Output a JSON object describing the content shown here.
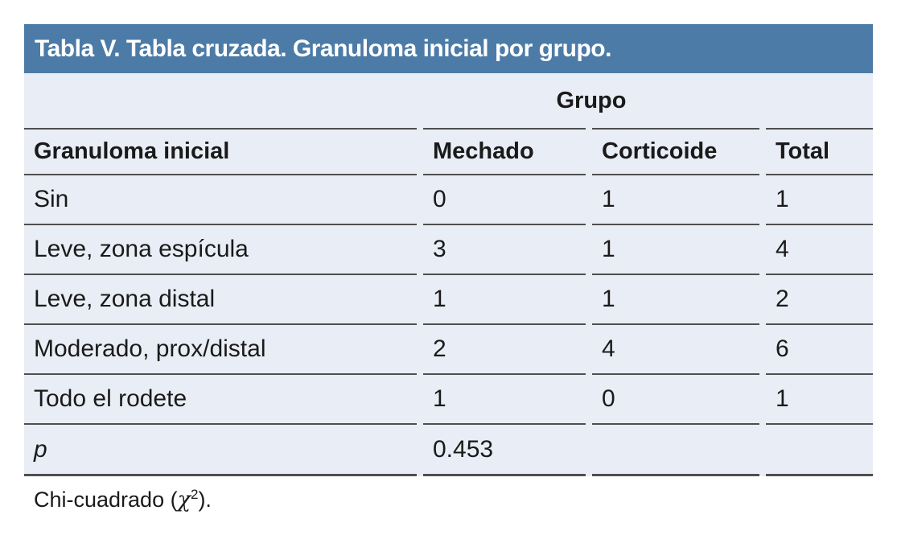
{
  "title": "Tabla V. Tabla cruzada. Granuloma inicial por grupo.",
  "table": {
    "group_header": "Grupo",
    "columns": [
      "Granuloma inicial",
      "Mechado",
      "Corticoide",
      "Total"
    ],
    "rows": [
      {
        "label": "Sin",
        "values": [
          "0",
          "1",
          "1"
        ]
      },
      {
        "label": "Leve, zona espícula",
        "values": [
          "3",
          "1",
          "4"
        ]
      },
      {
        "label": "Leve, zona distal",
        "values": [
          "1",
          "1",
          "2"
        ]
      },
      {
        "label": "Moderado, prox/distal",
        "values": [
          "2",
          "4",
          "6"
        ]
      },
      {
        "label": "Todo el rodete",
        "values": [
          "1",
          "0",
          "1"
        ]
      }
    ],
    "p_row": {
      "label": "p",
      "value": "0.453"
    }
  },
  "footnote": {
    "prefix": "Chi-cuadrado (",
    "chi": "χ",
    "sup": "2",
    "suffix": ")."
  },
  "chart_data": {
    "type": "table",
    "title": "Tabla V. Tabla cruzada. Granuloma inicial por grupo.",
    "group_label": "Grupo",
    "categories": [
      "Sin",
      "Leve, zona espícula",
      "Leve, zona distal",
      "Moderado, prox/distal",
      "Todo el rodete"
    ],
    "series": [
      {
        "name": "Mechado",
        "values": [
          0,
          3,
          1,
          2,
          1
        ]
      },
      {
        "name": "Corticoide",
        "values": [
          1,
          1,
          1,
          4,
          0
        ]
      },
      {
        "name": "Total",
        "values": [
          1,
          4,
          2,
          6,
          1
        ]
      }
    ],
    "p_value": 0.453,
    "test": "Chi-cuadrado (χ2)."
  },
  "colors": {
    "accent": "#4c7ba7",
    "panel": "#e9edf5",
    "border": "#4f4f4f",
    "ink": "#1a1a1a",
    "titleink": "#ffffff"
  }
}
